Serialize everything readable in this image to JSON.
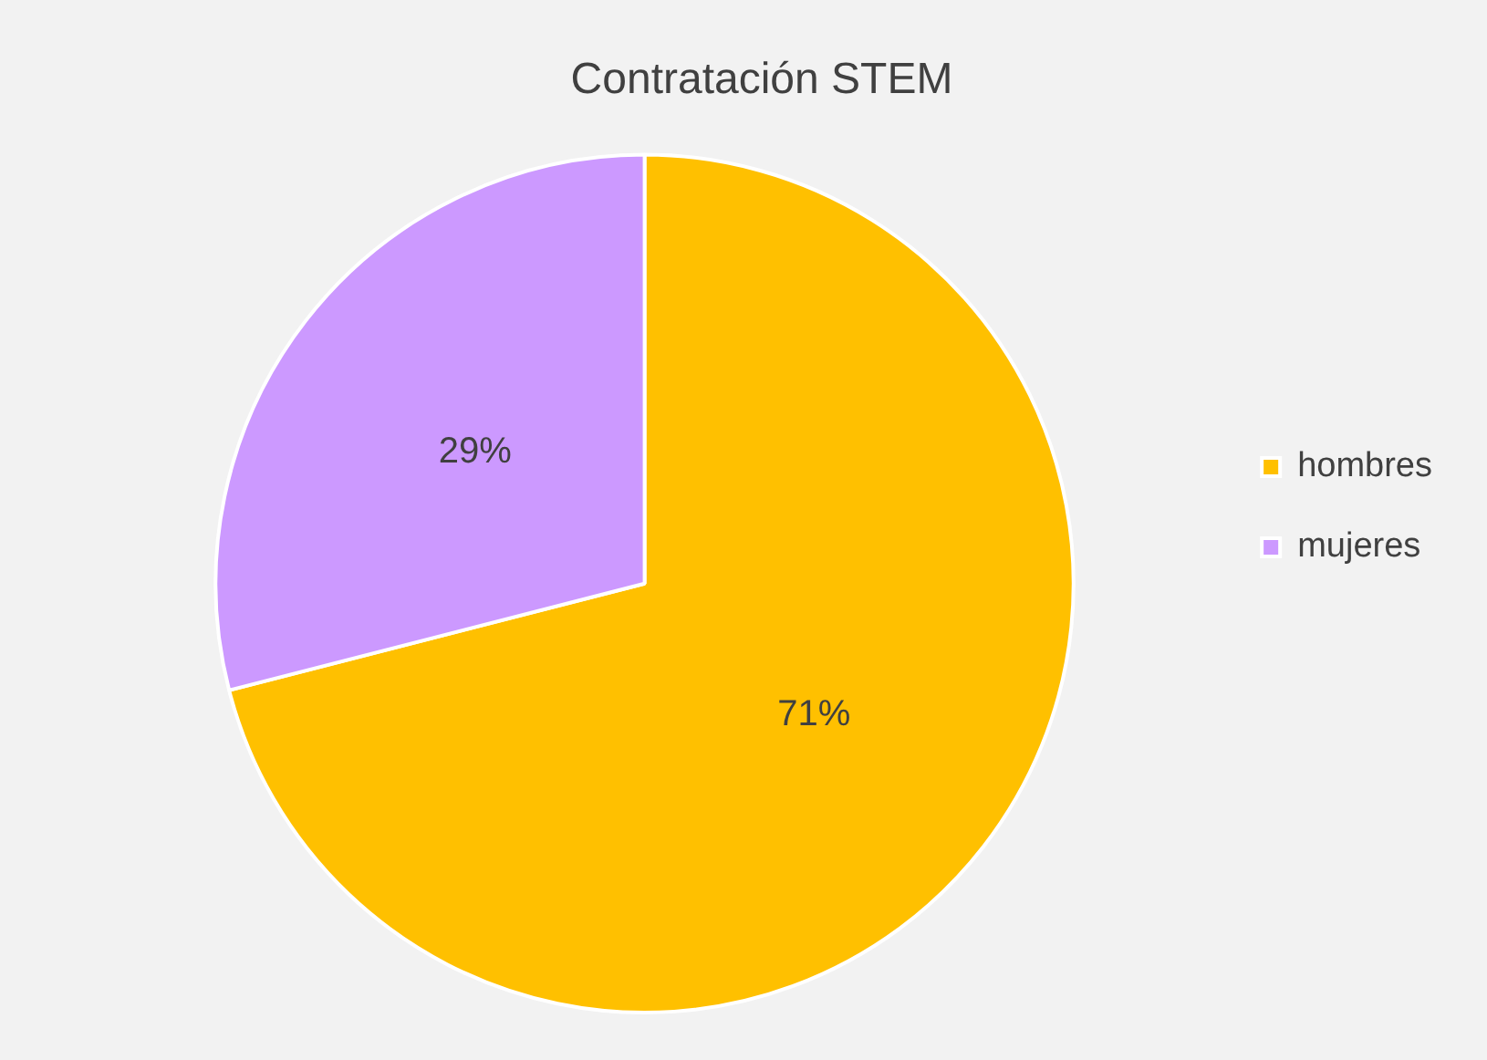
{
  "chart_data": {
    "type": "pie",
    "title": "Contratación STEM",
    "categories": [
      "hombres",
      "mujeres"
    ],
    "values": [
      71,
      29
    ],
    "colors": [
      "#ffc000",
      "#cc99ff"
    ],
    "value_labels": [
      "71%",
      "29%"
    ],
    "legend": "right"
  }
}
